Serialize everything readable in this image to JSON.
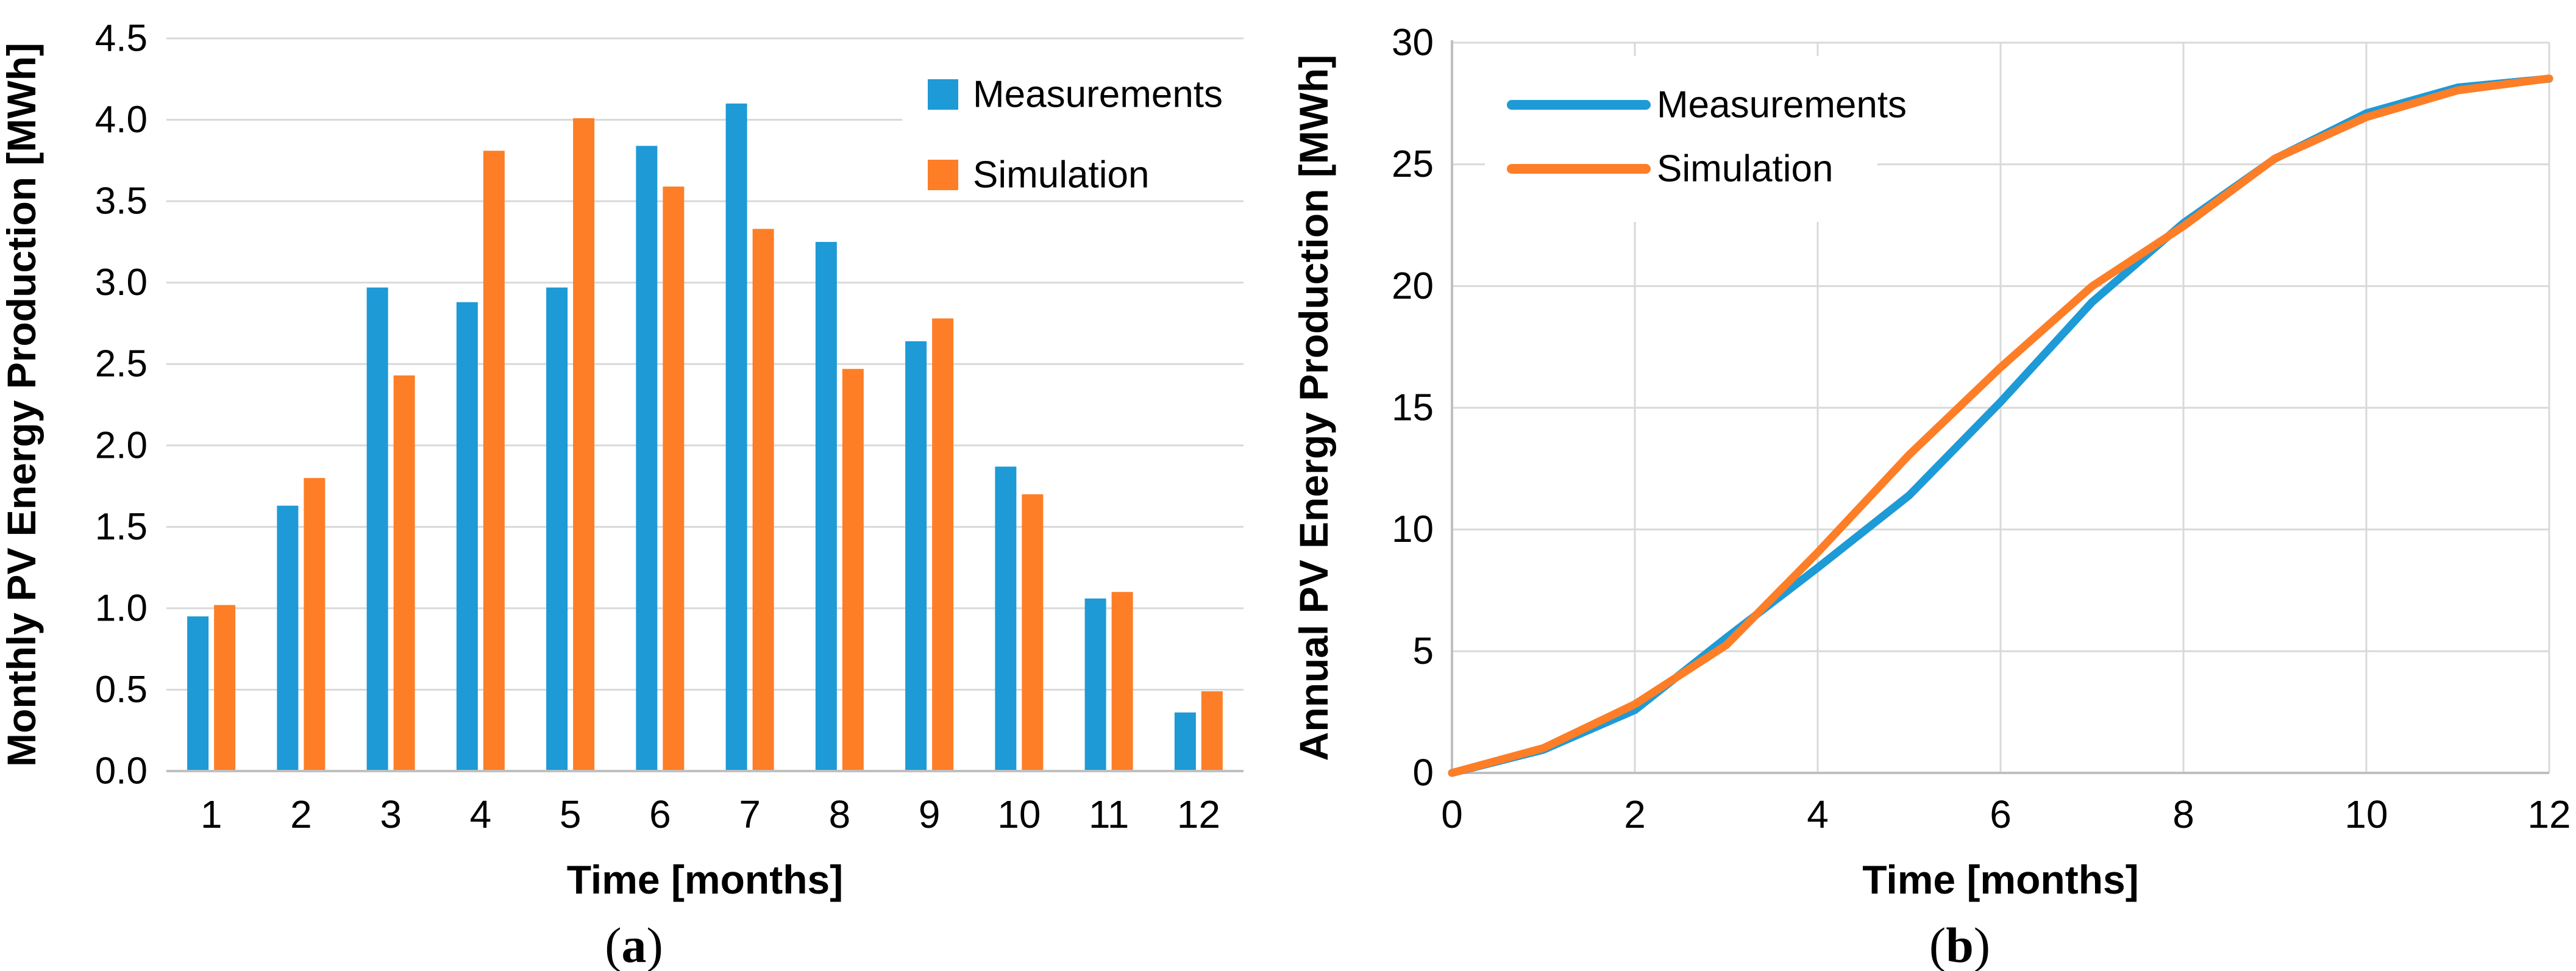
{
  "page": {
    "background": "#ffffff"
  },
  "colors": {
    "measurements": "#1E9AD6",
    "simulation": "#FD7E27",
    "grid": "#D9D9D9",
    "axis": "#BFBFBF",
    "text": "#000000",
    "legend_bg": "#FFFFFF"
  },
  "chart_data": [
    {
      "id": "monthly",
      "type": "bar",
      "panel_caption": "(a)",
      "xlabel": "Time [months]",
      "ylabel": "Monthly PV Energy Production [MWh]",
      "categories": [
        "1",
        "2",
        "3",
        "4",
        "5",
        "6",
        "7",
        "8",
        "9",
        "10",
        "11",
        "12"
      ],
      "series": [
        {
          "name": "Measurements",
          "color_key": "measurements",
          "values": [
            0.95,
            1.63,
            2.97,
            2.88,
            2.97,
            3.84,
            4.1,
            3.25,
            2.64,
            1.87,
            1.06,
            0.36
          ]
        },
        {
          "name": "Simulation",
          "color_key": "simulation",
          "values": [
            1.02,
            1.8,
            2.43,
            3.81,
            4.01,
            3.59,
            3.33,
            2.47,
            2.78,
            1.7,
            1.1,
            0.49
          ]
        }
      ],
      "ylim": [
        0,
        4.5
      ],
      "ytick": 0.5,
      "ytick_format": "1dp",
      "grid": "horizontal",
      "legend_position": "top-right",
      "legend_marker": "square"
    },
    {
      "id": "annual",
      "type": "line",
      "panel_caption": "(b)",
      "xlabel": "Time [months]",
      "ylabel": "Annual PV Energy Production [MWh]",
      "x": [
        0,
        1,
        2,
        3,
        4,
        5,
        6,
        7,
        8,
        9,
        10,
        11,
        12
      ],
      "series": [
        {
          "name": "Measurements",
          "color_key": "measurements",
          "values": [
            0,
            0.95,
            2.58,
            5.55,
            8.43,
            11.4,
            15.24,
            19.34,
            22.59,
            25.23,
            27.1,
            28.16,
            28.52
          ]
        },
        {
          "name": "Simulation",
          "color_key": "simulation",
          "values": [
            0,
            1.02,
            2.82,
            5.25,
            9.06,
            13.07,
            16.66,
            19.99,
            22.46,
            25.24,
            26.94,
            28.04,
            28.53
          ]
        }
      ],
      "xlim": [
        0,
        12
      ],
      "xtick": 2,
      "ylim": [
        0,
        30
      ],
      "ytick": 5,
      "ytick_format": "int",
      "grid": "both",
      "legend_position": "top-left",
      "legend_marker": "line"
    }
  ]
}
